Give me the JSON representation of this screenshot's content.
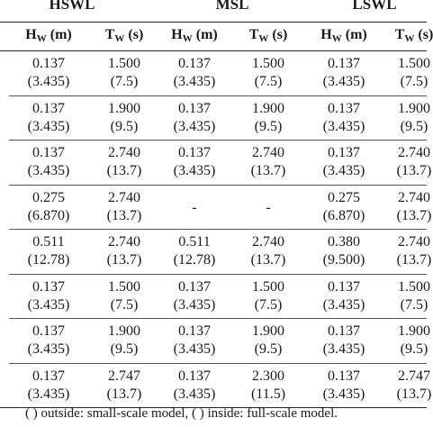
{
  "groups": [
    "HSWL",
    "MSL",
    "LSWL"
  ],
  "column_headers": [
    {
      "symbol": "H",
      "sub": "W",
      "unit": " (m)"
    },
    {
      "symbol": "T",
      "sub": "W",
      "unit": " (s)"
    },
    {
      "symbol": "H",
      "sub": "W",
      "unit": " (m)"
    },
    {
      "symbol": "T",
      "sub": "W",
      "unit": " (s)"
    },
    {
      "symbol": "H",
      "sub": "W",
      "unit": " (m)"
    },
    {
      "symbol": "T",
      "sub": "W",
      "unit": " (s)"
    }
  ],
  "rows": [
    [
      [
        "0.137",
        "(3.435)"
      ],
      [
        "1.500",
        "(7.5)"
      ],
      [
        "0.137",
        "(3.435)"
      ],
      [
        "1.500",
        "(7.5)"
      ],
      [
        "0.137",
        "(3.435)"
      ],
      [
        "1.500",
        "(7.5)"
      ]
    ],
    [
      [
        "0.137",
        "(3.435)"
      ],
      [
        "1.900",
        "(9.5)"
      ],
      [
        "0.137",
        "(3.435)"
      ],
      [
        "1.900",
        "(9.5)"
      ],
      [
        "0.137",
        "(3.435)"
      ],
      [
        "1.900",
        "(9.5)"
      ]
    ],
    [
      [
        "0.137",
        "(3.435)"
      ],
      [
        "2.740",
        "(13.7)"
      ],
      [
        "0.137",
        "(3.435)"
      ],
      [
        "2.740",
        "(13.7)"
      ],
      [
        "0.137",
        "(3.435)"
      ],
      [
        "2.740",
        "(13.7)"
      ]
    ],
    [
      [
        "0.275",
        "(6.870)"
      ],
      [
        "2.740",
        "(13.7)"
      ],
      [
        "-",
        ""
      ],
      [
        "-",
        ""
      ],
      [
        "0.275",
        "(6.870)"
      ],
      [
        "2.740",
        "(13.7)"
      ]
    ],
    [
      [
        "0.511",
        "(12.78)"
      ],
      [
        "2.740",
        "(13.7)"
      ],
      [
        "0.511",
        "(12.78)"
      ],
      [
        "2.740",
        "(13.7)"
      ],
      [
        "0.380",
        "(9.500)"
      ],
      [
        "2.740",
        "(13.7)"
      ]
    ],
    [
      [
        "0.137",
        "(3.435)"
      ],
      [
        "1.500",
        "(7.5)"
      ],
      [
        "0.137",
        "(3.435)"
      ],
      [
        "1.500",
        "(7.5)"
      ],
      [
        "0.137",
        "(3.435)"
      ],
      [
        "1.500",
        "(7.5)"
      ]
    ],
    [
      [
        "0.137",
        "(3.435)"
      ],
      [
        "1.900",
        "(9.5)"
      ],
      [
        "0.137",
        "(3.435)"
      ],
      [
        "1.900",
        "(9.5)"
      ],
      [
        "0.137",
        "(3.435)"
      ],
      [
        "1.900",
        "(9.5)"
      ]
    ],
    [
      [
        "0.137",
        "(3.435)"
      ],
      [
        "2.747",
        "(13.7)"
      ],
      [
        "0.137",
        "(3.435)"
      ],
      [
        "2.300",
        "(11.5)"
      ],
      [
        "0.137",
        "(3.435)"
      ],
      [
        "2.747",
        "(13.7)"
      ]
    ]
  ],
  "footnote": "( ) outside: small-scale model, ( ) inside: full-scale model."
}
